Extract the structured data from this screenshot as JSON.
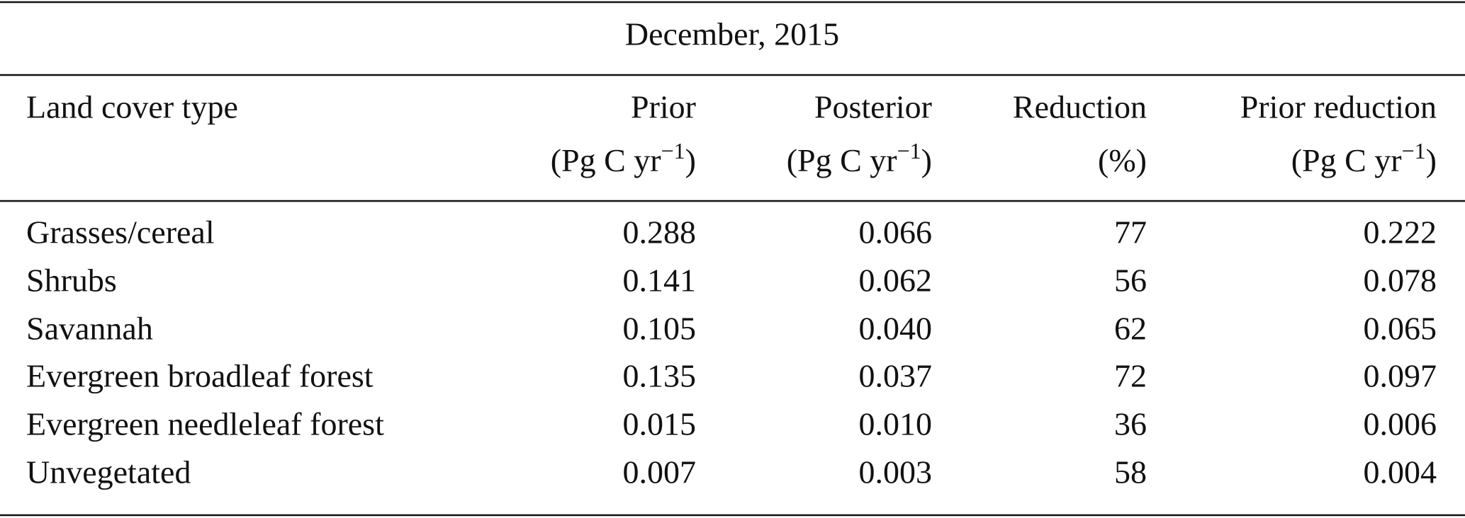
{
  "title": "December, 2015",
  "table": {
    "columns": [
      {
        "label": "Land cover type"
      },
      {
        "label": "Prior",
        "unit": {
          "open": "(Pg C yr",
          "sup": "−1",
          "close": ")"
        }
      },
      {
        "label": "Posterior",
        "unit": {
          "open": "(Pg C yr",
          "sup": "−1",
          "close": ")"
        }
      },
      {
        "label": "Reduction",
        "unit": {
          "open": "(%)"
        }
      },
      {
        "label": "Prior reduction",
        "unit": {
          "open": "(Pg C yr",
          "sup": "−1",
          "close": ")"
        }
      }
    ],
    "rows": [
      [
        "Grasses/cereal",
        "0.288",
        "0.066",
        "77",
        "0.222"
      ],
      [
        "Shrubs",
        "0.141",
        "0.062",
        "56",
        "0.078"
      ],
      [
        "Savannah",
        "0.105",
        "0.040",
        "62",
        "0.065"
      ],
      [
        "Evergreen broadleaf forest",
        "0.135",
        "0.037",
        "72",
        "0.097"
      ],
      [
        "Evergreen needleleaf forest",
        "0.015",
        "0.010",
        "36",
        "0.006"
      ],
      [
        "Unvegetated",
        "0.007",
        "0.003",
        "58",
        "0.004"
      ]
    ]
  }
}
